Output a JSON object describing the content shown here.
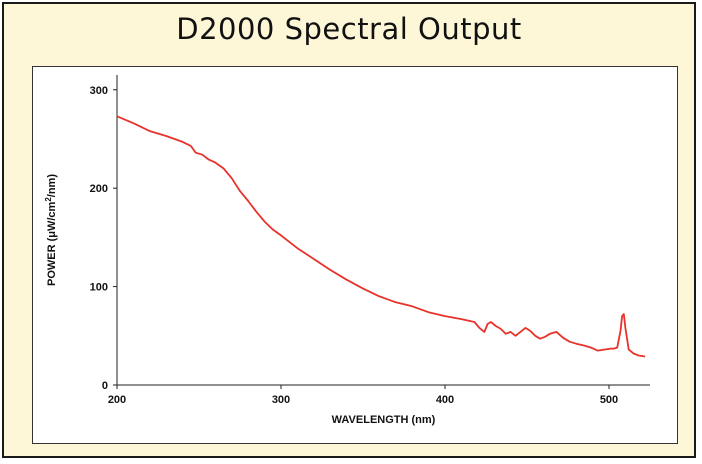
{
  "title": "D2000 Spectral Output",
  "colors": {
    "line": "#e8322a",
    "panel_bg": "#fdf7d8",
    "frame": "#1a1a1a"
  },
  "chart_data": {
    "type": "line",
    "title": "D2000 Spectral Output",
    "xlabel": "WAVELENGTH (nm)",
    "ylabel_prefix": "POWER (μW/cm",
    "ylabel_sup": "2",
    "ylabel_suffix": "/nm)",
    "xlim": [
      200,
      525
    ],
    "ylim": [
      0,
      315
    ],
    "xticks": [
      200,
      300,
      400,
      500
    ],
    "yticks": [
      0,
      100,
      200,
      300
    ],
    "grid": false,
    "series": [
      {
        "x": [
          200,
          210,
          220,
          230,
          240,
          245,
          248,
          252,
          256,
          260,
          265,
          270,
          275,
          280,
          285,
          290,
          295,
          300,
          310,
          320,
          330,
          340,
          350,
          360,
          370,
          380,
          390,
          400,
          410,
          418,
          421,
          424,
          426,
          428,
          431,
          434,
          437,
          440,
          443,
          446,
          449,
          452,
          455,
          458,
          461,
          464,
          468,
          472,
          476,
          480,
          485,
          489,
          493,
          497,
          501,
          503,
          505,
          507,
          508,
          509,
          510,
          512,
          515,
          518,
          522
        ],
        "y": [
          273,
          266,
          258,
          253,
          247,
          243,
          236,
          234,
          229,
          226,
          220,
          210,
          197,
          187,
          176,
          166,
          158,
          152,
          139,
          128,
          117,
          107,
          98,
          90,
          84,
          80,
          74,
          70,
          67,
          64,
          58,
          54,
          62,
          64,
          60,
          57,
          52,
          54,
          50,
          54,
          58,
          55,
          50,
          47,
          49,
          52,
          54,
          48,
          44,
          42,
          40,
          38,
          35,
          36,
          37,
          37,
          38,
          55,
          70,
          72,
          58,
          36,
          32,
          30,
          29
        ]
      }
    ]
  }
}
